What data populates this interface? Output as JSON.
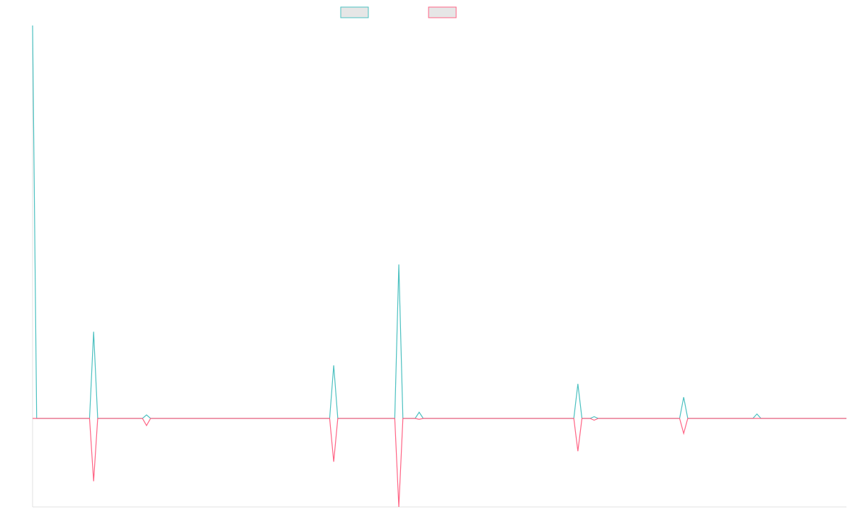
{
  "chart_data": {
    "type": "line",
    "x": [
      0,
      1,
      14,
      15,
      16,
      27,
      28,
      29,
      73,
      74,
      75,
      89,
      90,
      91,
      94,
      95,
      96,
      133,
      134,
      135,
      137,
      138,
      139,
      159,
      160,
      161,
      177,
      178,
      179,
      200
    ],
    "xlim": [
      0,
      200
    ],
    "ylim": [
      -100,
      444
    ],
    "series": [
      {
        "color": "#4bc0c0",
        "values": [
          444,
          0,
          0,
          98,
          0,
          0,
          4,
          0,
          0,
          60,
          0,
          0,
          174,
          0,
          0,
          7,
          0,
          0,
          39,
          0,
          0,
          2,
          0,
          0,
          24,
          0,
          0,
          5,
          0,
          0
        ]
      },
      {
        "color": "#ff6384",
        "values": [
          0,
          0,
          0,
          -71,
          0,
          0,
          -8,
          0,
          0,
          -49,
          0,
          0,
          -100,
          0,
          0,
          -1,
          0,
          0,
          -37,
          0,
          0,
          -2,
          0,
          0,
          -17,
          0,
          0,
          0,
          0,
          0
        ]
      }
    ]
  }
}
